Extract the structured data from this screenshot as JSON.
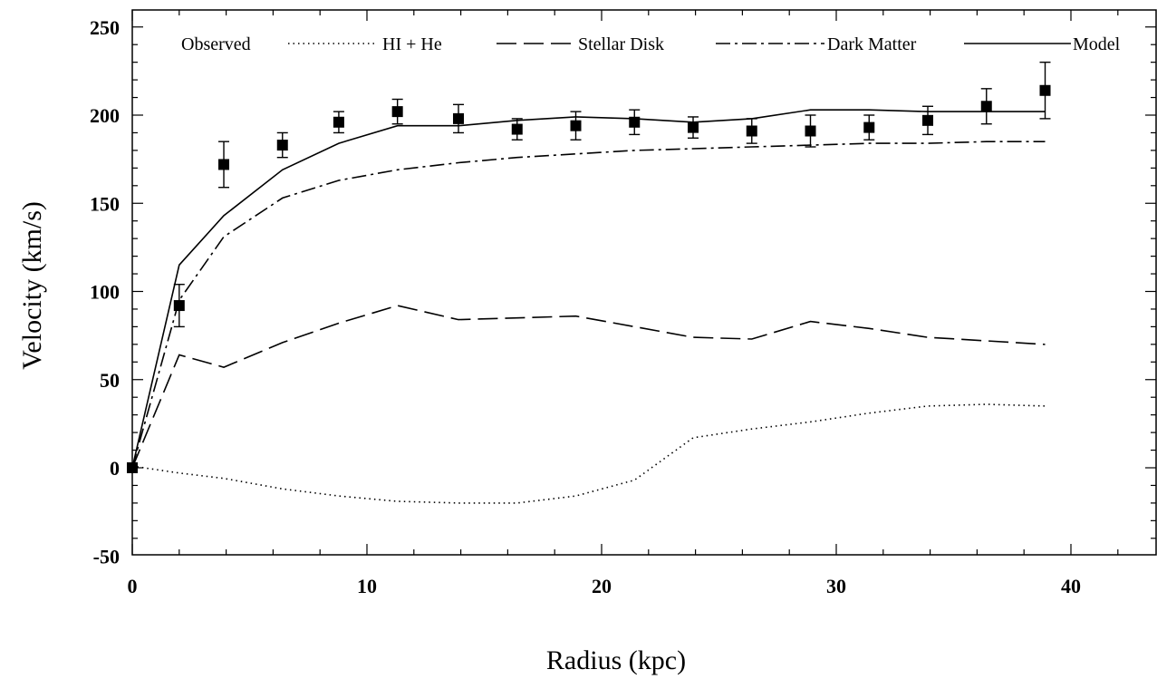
{
  "chart_data": {
    "type": "line",
    "title": "",
    "xlabel": "Radius  (kpc)",
    "ylabel": "Velocity (km/s)",
    "xlim": [
      0,
      44
    ],
    "ylim": [
      -50,
      260
    ],
    "xticks": [
      0,
      10,
      20,
      30,
      40
    ],
    "yticks": [
      -50,
      0,
      50,
      100,
      150,
      200,
      250
    ],
    "legend": "top",
    "grid": false,
    "observed": {
      "name": "Observed",
      "x": [
        0,
        2,
        3.9,
        6.4,
        8.8,
        11.3,
        13.9,
        16.4,
        18.9,
        21.4,
        23.9,
        26.4,
        28.9,
        31.4,
        33.9,
        36.4,
        38.9
      ],
      "y": [
        0,
        92,
        172,
        183,
        196,
        202,
        198,
        192,
        194,
        196,
        193,
        191,
        191,
        193,
        197,
        205,
        214
      ],
      "err": [
        0,
        12,
        13,
        7,
        6,
        7,
        8,
        6,
        8,
        7,
        6,
        7,
        9,
        7,
        8,
        10,
        16
      ]
    },
    "series": [
      {
        "name": "HI + He",
        "style": "dotted",
        "x": [
          0,
          2,
          3.9,
          6.4,
          8.8,
          11.3,
          13.9,
          16.4,
          18.9,
          21.4,
          23.9,
          26.4,
          28.9,
          31.4,
          33.9,
          36.4,
          38.9
        ],
        "y": [
          1,
          -3,
          -6,
          -12,
          -16,
          -19,
          -20,
          -20,
          -16,
          -7,
          17,
          22,
          26,
          31,
          35,
          36,
          35
        ]
      },
      {
        "name": "Stellar Disk",
        "style": "dashed",
        "x": [
          0,
          2,
          3.9,
          6.4,
          8.8,
          11.3,
          13.9,
          16.4,
          18.9,
          21.4,
          23.9,
          26.4,
          28.9,
          31.4,
          33.9,
          36.4,
          38.9
        ],
        "y": [
          0,
          64,
          57,
          71,
          82,
          92,
          84,
          85,
          86,
          80,
          74,
          73,
          83,
          79,
          74,
          72,
          70
        ]
      },
      {
        "name": "Dark Matter",
        "style": "dashdot",
        "x": [
          0,
          2,
          3.9,
          6.4,
          8.8,
          11.3,
          13.9,
          16.4,
          18.9,
          21.4,
          23.9,
          26.4,
          28.9,
          31.4,
          33.9,
          36.4,
          38.9
        ],
        "y": [
          0,
          95,
          131,
          153,
          163,
          169,
          173,
          176,
          178,
          180,
          181,
          182,
          183,
          184,
          184,
          185,
          185
        ]
      },
      {
        "name": "Model",
        "style": "solid",
        "x": [
          0,
          2,
          3.9,
          6.4,
          8.8,
          11.3,
          13.9,
          16.4,
          18.9,
          21.4,
          23.9,
          26.4,
          28.9,
          31.4,
          33.9,
          36.4,
          38.9
        ],
        "y": [
          0,
          115,
          143,
          169,
          184,
          194,
          194,
          197,
          199,
          198,
          196,
          198,
          203,
          203,
          202,
          202,
          202
        ]
      }
    ]
  }
}
